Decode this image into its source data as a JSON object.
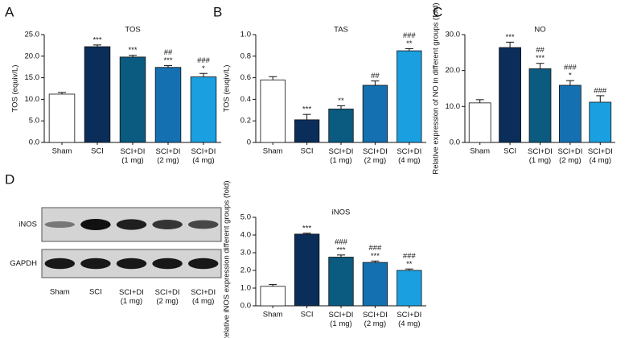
{
  "chart_data": [
    {
      "type": "bar",
      "panel": "A",
      "title": "TOS",
      "ylabel": "TOS (equiv/L)",
      "categories": [
        "Sham",
        "SCI",
        "SCI+DI\n(1 mg)",
        "SCI+DI\n(2 mg)",
        "SCI+DI\n(4 mg)"
      ],
      "values": [
        11.2,
        22.2,
        19.8,
        17.4,
        15.2
      ],
      "errors": [
        0.4,
        0.4,
        0.4,
        0.4,
        0.8
      ],
      "colors": [
        "#ffffff",
        "#0b2d5a",
        "#0b5a80",
        "#1470b0",
        "#1aa0e0"
      ],
      "annotations": [
        [],
        [
          "***"
        ],
        [
          "***"
        ],
        [
          "##",
          "***"
        ],
        [
          "###",
          "*"
        ]
      ],
      "ylim": [
        0,
        25
      ],
      "yticks": [
        {
          "value": 0,
          "label": "0.0"
        },
        {
          "value": 5,
          "label": "5.0"
        },
        {
          "value": 10,
          "label": "10.0"
        },
        {
          "value": 15,
          "label": "15.0"
        },
        {
          "value": 20,
          "label": "20.0"
        },
        {
          "value": 25,
          "label": "25.0"
        }
      ]
    },
    {
      "type": "bar",
      "panel": "B",
      "title": "TAS",
      "ylabel": "TOS (euqiv/L)",
      "categories": [
        "Sham",
        "SCI",
        "SCI+DI\n(1 mg)",
        "SCI+DI\n(2 mg)",
        "SCI+DI\n(4 mg)"
      ],
      "values": [
        0.58,
        0.21,
        0.31,
        0.53,
        0.85
      ],
      "errors": [
        0.03,
        0.05,
        0.03,
        0.04,
        0.02
      ],
      "colors": [
        "#ffffff",
        "#0b2d5a",
        "#0b5a80",
        "#1470b0",
        "#1aa0e0"
      ],
      "annotations": [
        [],
        [
          "***"
        ],
        [
          "**"
        ],
        [
          "##"
        ],
        [
          "###",
          "**"
        ]
      ],
      "ylim": [
        0,
        1.0
      ],
      "yticks": [
        0,
        0.2,
        0.4,
        0.6,
        0.8,
        {
          "value": 1.0,
          "label": "1.0"
        }
      ]
    },
    {
      "type": "bar",
      "panel": "C",
      "title": "NO",
      "ylabel": "Relative expression of NO in different groups (fold)",
      "categories": [
        "Sham",
        "SCI",
        "SCI+DI\n(1 mg)",
        "SCI+DI\n(2 mg)",
        "SCI+DI\n(4 mg)"
      ],
      "values": [
        11.0,
        26.4,
        20.5,
        15.9,
        11.2
      ],
      "errors": [
        0.9,
        1.5,
        1.5,
        1.3,
        1.8
      ],
      "colors": [
        "#ffffff",
        "#0b2d5a",
        "#0b5a80",
        "#1470b0",
        "#1aa0e0"
      ],
      "annotations": [
        [],
        [
          "***"
        ],
        [
          "##",
          "***"
        ],
        [
          "###",
          "*"
        ],
        [
          "###"
        ]
      ],
      "ylim": [
        0,
        30
      ],
      "yticks": [
        {
          "value": 0,
          "label": "0.0"
        },
        {
          "value": 10,
          "label": "10.0"
        },
        {
          "value": 20,
          "label": "20.0"
        },
        {
          "value": 30,
          "label": "30.0"
        }
      ]
    },
    {
      "type": "blot",
      "panel": "D",
      "rows": [
        "iNOS",
        "GAPDH"
      ],
      "categories": [
        "Sham",
        "SCI",
        "SCI+DI\n(1 mg)",
        "SCI+DI\n(2 mg)",
        "SCI+DI\n(4 mg)"
      ]
    },
    {
      "type": "bar",
      "title": "iNOS",
      "ylabel": "Relative iNOS expression different groups (fold)",
      "categories": [
        "Sham",
        "SCI",
        "SCI+DI\n(1 mg)",
        "SCI+DI\n(2 mg)",
        "SCI+DI\n(4 mg)"
      ],
      "values": [
        1.1,
        4.05,
        2.75,
        2.45,
        2.0
      ],
      "errors": [
        0.1,
        0.05,
        0.12,
        0.08,
        0.08
      ],
      "colors": [
        "#ffffff",
        "#0b2d5a",
        "#0b5a80",
        "#1470b0",
        "#1aa0e0"
      ],
      "annotations": [
        [],
        [
          "***"
        ],
        [
          "###",
          "***"
        ],
        [
          "###",
          "***"
        ],
        [
          "###",
          "**"
        ]
      ],
      "ylim": [
        0,
        5
      ],
      "yticks": [
        {
          "value": 0,
          "label": "0.0"
        },
        {
          "value": 1,
          "label": "1.0"
        },
        {
          "value": 2,
          "label": "2.0"
        },
        {
          "value": 3,
          "label": "3.0"
        },
        {
          "value": 4,
          "label": "4.0"
        },
        {
          "value": 5,
          "label": "5.0"
        }
      ]
    }
  ]
}
